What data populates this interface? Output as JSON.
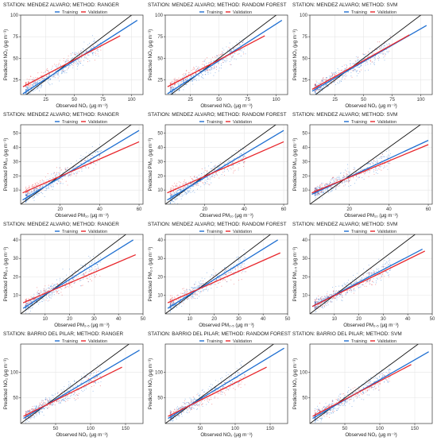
{
  "colors": {
    "training": "#1f6fd1",
    "validation": "#e8262b",
    "identity": "#111111",
    "grid": "#e6e6e6",
    "frame": "#333333"
  },
  "legend": {
    "training": "Training",
    "validation": "Validation"
  },
  "chart_data": [
    {
      "type": "scatter",
      "title": "STATION: MENDEZ ALVARO; METHOD: RANGER",
      "xlabel": "Observed NO₂ (μg m⁻³)",
      "ylabel": "Predicted NO₂ (μg m⁻³)",
      "xlim": [
        3,
        110
      ],
      "ylim": [
        8,
        100
      ],
      "xticks": [
        25,
        50,
        75,
        100
      ],
      "yticks": [
        25,
        50,
        75,
        100
      ],
      "legend_position": "top",
      "grid": true,
      "series": [
        {
          "name": "Training",
          "fit_line": {
            "x": [
              5,
              105
            ],
            "y": [
              9,
              94
            ]
          }
        },
        {
          "name": "Validation",
          "fit_line": {
            "x": [
              5,
              90
            ],
            "y": [
              17,
              76
            ]
          }
        }
      ],
      "identity_line": true
    },
    {
      "type": "scatter",
      "title": "STATION: MENDEZ ALVARO; METHOD: RANDOM FOREST",
      "xlabel": "Observed NO₂ (μg m⁻³)",
      "ylabel": "Predicted NO₂ (μg m⁻³)",
      "xlim": [
        3,
        110
      ],
      "ylim": [
        8,
        100
      ],
      "xticks": [
        25,
        50,
        75,
        100
      ],
      "yticks": [
        25,
        50,
        75,
        100
      ],
      "legend_position": "top",
      "grid": true,
      "series": [
        {
          "name": "Training",
          "fit_line": {
            "x": [
              5,
              105
            ],
            "y": [
              9,
              94
            ]
          }
        },
        {
          "name": "Validation",
          "fit_line": {
            "x": [
              5,
              90
            ],
            "y": [
              17,
              76
            ]
          }
        }
      ],
      "identity_line": true
    },
    {
      "type": "scatter",
      "title": "STATION: MENDEZ ALVARO; METHOD: SVM",
      "xlabel": "Observed NO₂ (μg m⁻³)",
      "ylabel": "Predicted NO₂ (μg m⁻³)",
      "xlim": [
        3,
        110
      ],
      "ylim": [
        8,
        100
      ],
      "xticks": [
        25,
        50,
        75,
        100
      ],
      "yticks": [
        25,
        50,
        75,
        100
      ],
      "legend_position": "top",
      "grid": true,
      "series": [
        {
          "name": "Training",
          "fit_line": {
            "x": [
              5,
              105
            ],
            "y": [
              12,
              88
            ]
          }
        },
        {
          "name": "Validation",
          "fit_line": {
            "x": [
              5,
              90
            ],
            "y": [
              14,
              77
            ]
          }
        }
      ],
      "identity_line": true
    },
    {
      "type": "scatter",
      "title": "STATION: MENDEZ ALVARO; METHOD: RANGER",
      "xlabel": "Observed PM₁₀ (μg m⁻³)",
      "ylabel": "Predicted PM₁₀ (μg m⁻³)",
      "xlim": [
        0,
        62
      ],
      "ylim": [
        0,
        56
      ],
      "xticks": [
        20,
        40,
        60
      ],
      "yticks": [
        10,
        20,
        30,
        40,
        50
      ],
      "legend_position": "top",
      "grid": true,
      "series": [
        {
          "name": "Training",
          "fit_line": {
            "x": [
              1,
              60
            ],
            "y": [
              3,
              52
            ]
          }
        },
        {
          "name": "Validation",
          "fit_line": {
            "x": [
              1,
              60
            ],
            "y": [
              8,
              44
            ]
          }
        }
      ],
      "identity_line": true
    },
    {
      "type": "scatter",
      "title": "STATION: MENDEZ ALVARO; METHOD: RANDOM FOREST",
      "xlabel": "Observed PM₁₀ (μg m⁻³)",
      "ylabel": "Predicted PM₁₀ (μg m⁻³)",
      "xlim": [
        0,
        62
      ],
      "ylim": [
        0,
        56
      ],
      "xticks": [
        20,
        40,
        60
      ],
      "yticks": [
        10,
        20,
        30,
        40,
        50
      ],
      "legend_position": "top",
      "grid": true,
      "series": [
        {
          "name": "Training",
          "fit_line": {
            "x": [
              1,
              60
            ],
            "y": [
              3,
              52
            ]
          }
        },
        {
          "name": "Validation",
          "fit_line": {
            "x": [
              1,
              60
            ],
            "y": [
              8,
              44
            ]
          }
        }
      ],
      "identity_line": true
    },
    {
      "type": "scatter",
      "title": "STATION: MENDEZ ALVARO; METHOD: SVM",
      "xlabel": "Observed PM₁₀ (μg m⁻³)",
      "ylabel": "Predicted PM₁₀ (μg m⁻³)",
      "xlim": [
        0,
        62
      ],
      "ylim": [
        0,
        56
      ],
      "xticks": [
        20,
        40,
        60
      ],
      "yticks": [
        10,
        20,
        30,
        40,
        50
      ],
      "legend_position": "top",
      "grid": true,
      "series": [
        {
          "name": "Training",
          "fit_line": {
            "x": [
              1,
              60
            ],
            "y": [
              7,
              45
            ]
          }
        },
        {
          "name": "Validation",
          "fit_line": {
            "x": [
              1,
              60
            ],
            "y": [
              8,
              42
            ]
          }
        }
      ],
      "identity_line": true
    },
    {
      "type": "scatter",
      "title": "STATION: MENDEZ ALVARO; METHOD: RANGER",
      "xlabel": "Observed PM₂.₅ (μg m⁻³)",
      "ylabel": "Predicted PM₂.₅ (μg m⁻³)",
      "xlim": [
        0,
        50
      ],
      "ylim": [
        0,
        43
      ],
      "xticks": [
        10,
        20,
        30,
        40,
        50
      ],
      "yticks": [
        10,
        20,
        30,
        40
      ],
      "legend_position": "top",
      "grid": true,
      "series": [
        {
          "name": "Training",
          "fit_line": {
            "x": [
              1,
              46
            ],
            "y": [
              3,
              40
            ]
          }
        },
        {
          "name": "Validation",
          "fit_line": {
            "x": [
              1,
              47
            ],
            "y": [
              6,
              32
            ]
          }
        }
      ],
      "identity_line": true
    },
    {
      "type": "scatter",
      "title": "STATION: MENDEZ ALVARO; METHOD: RANDOM FOREST",
      "xlabel": "Observed PM₂.₅ (μg m⁻³)",
      "ylabel": "Predicted PM₂.₅ (μg m⁻³)",
      "xlim": [
        0,
        50
      ],
      "ylim": [
        0,
        43
      ],
      "xticks": [
        10,
        20,
        30,
        40,
        50
      ],
      "yticks": [
        10,
        20,
        30,
        40
      ],
      "legend_position": "top",
      "grid": true,
      "series": [
        {
          "name": "Training",
          "fit_line": {
            "x": [
              1,
              46
            ],
            "y": [
              3,
              40
            ]
          }
        },
        {
          "name": "Validation",
          "fit_line": {
            "x": [
              1,
              47
            ],
            "y": [
              6,
              33
            ]
          }
        }
      ],
      "identity_line": true
    },
    {
      "type": "scatter",
      "title": "STATION: MENDEZ ALVARO; METHOD: SVM",
      "xlabel": "Observed PM₂.₅ (μg m⁻³)",
      "ylabel": "Predicted PM₂.₅ (μg m⁻³)",
      "xlim": [
        0,
        50
      ],
      "ylim": [
        0,
        43
      ],
      "xticks": [
        10,
        20,
        30,
        40,
        50
      ],
      "yticks": [
        10,
        20,
        30,
        40
      ],
      "legend_position": "top",
      "grid": true,
      "series": [
        {
          "name": "Training",
          "fit_line": {
            "x": [
              1,
              46
            ],
            "y": [
              4,
              35
            ]
          }
        },
        {
          "name": "Validation",
          "fit_line": {
            "x": [
              1,
              47
            ],
            "y": [
              4,
              34
            ]
          }
        }
      ],
      "identity_line": true
    },
    {
      "type": "scatter",
      "title": "STATION: BARRIO DEL PILAR; METHOD: RANGER",
      "xlabel": "Observed NO₂ (μg m⁻³)",
      "ylabel": "Predicted NO₂ (μg m⁻³)",
      "xlim": [
        0,
        175
      ],
      "ylim": [
        0,
        155
      ],
      "xticks": [
        50,
        100,
        150
      ],
      "yticks": [
        50,
        100
      ],
      "legend_position": "top",
      "grid": true,
      "series": [
        {
          "name": "Training",
          "fit_line": {
            "x": [
              4,
              170
            ],
            "y": [
              10,
              143
            ]
          }
        },
        {
          "name": "Validation",
          "fit_line": {
            "x": [
              4,
              145
            ],
            "y": [
              14,
              110
            ]
          }
        }
      ],
      "identity_line": true
    },
    {
      "type": "scatter",
      "title": "STATION: BARRIO DEL PILAR; METHOD: RANDOM FOREST",
      "xlabel": "Observed NO₂ (μg m⁻³)",
      "ylabel": "Predicted NO₂ (μg m⁻³)",
      "xlim": [
        0,
        175
      ],
      "ylim": [
        0,
        155
      ],
      "xticks": [
        50,
        100,
        150
      ],
      "yticks": [
        50,
        100
      ],
      "legend_position": "top",
      "grid": true,
      "series": [
        {
          "name": "Training",
          "fit_line": {
            "x": [
              4,
              170
            ],
            "y": [
              10,
              147
            ]
          }
        },
        {
          "name": "Validation",
          "fit_line": {
            "x": [
              4,
              145
            ],
            "y": [
              14,
              110
            ]
          }
        }
      ],
      "identity_line": true
    },
    {
      "type": "scatter",
      "title": "STATION: BARRIO DEL PILAR; METHOD: SVM",
      "xlabel": "Observed NO₂ (μg m⁻³)",
      "ylabel": "Predicted NO₂ (μg m⁻³)",
      "xlim": [
        0,
        175
      ],
      "ylim": [
        0,
        155
      ],
      "xticks": [
        50,
        100,
        150
      ],
      "yticks": [
        50,
        100
      ],
      "legend_position": "top",
      "grid": true,
      "series": [
        {
          "name": "Training",
          "fit_line": {
            "x": [
              4,
              170
            ],
            "y": [
              10,
              140
            ]
          }
        },
        {
          "name": "Validation",
          "fit_line": {
            "x": [
              4,
              145
            ],
            "y": [
              14,
              115
            ]
          }
        }
      ],
      "identity_line": true
    }
  ]
}
